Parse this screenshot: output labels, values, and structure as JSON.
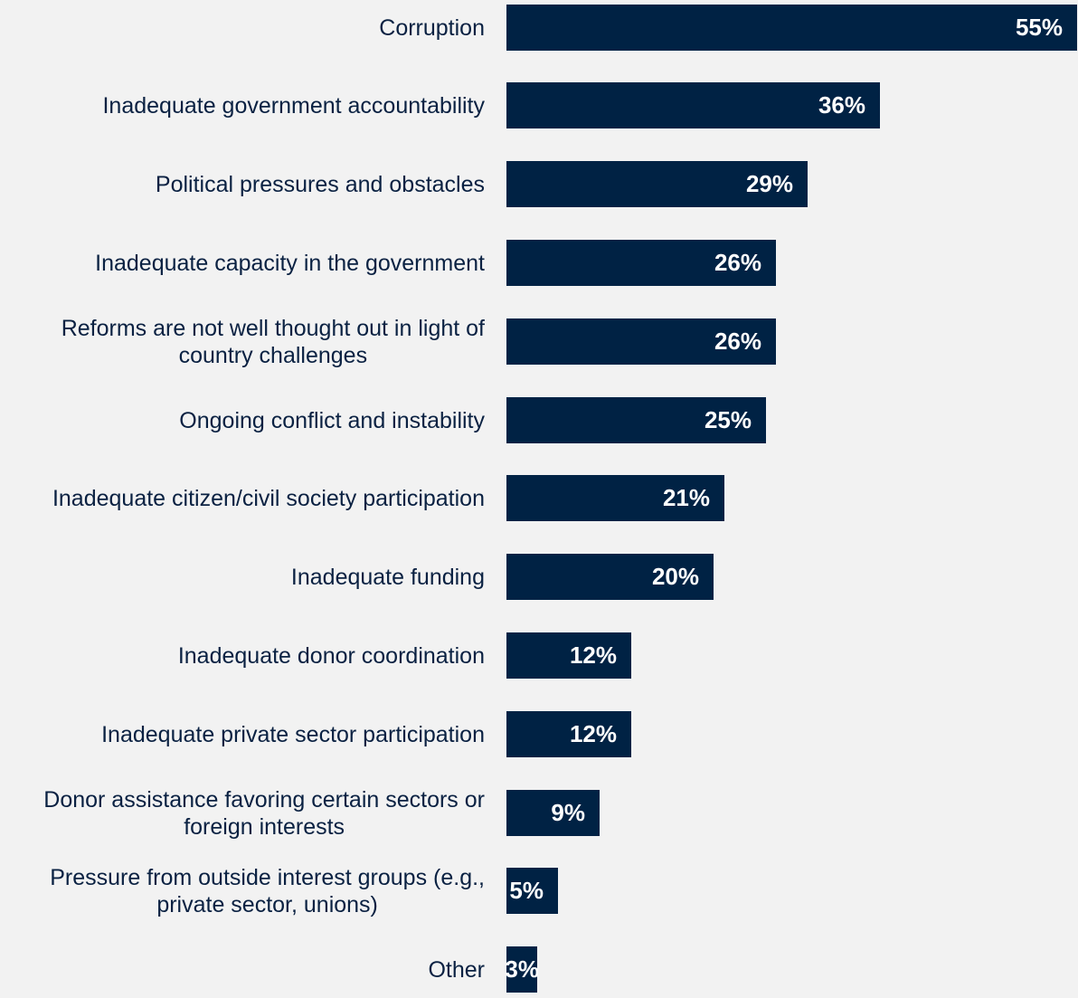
{
  "chart_data": {
    "type": "bar",
    "orientation": "horizontal",
    "categories": [
      "Corruption",
      "Inadequate government accountability",
      "Political pressures and obstacles",
      "Inadequate capacity in the government",
      "Reforms are not well thought out in light of country challenges",
      "Ongoing conflict and instability",
      "Inadequate citizen/civil society participation",
      "Inadequate funding",
      "Inadequate donor coordination",
      "Inadequate private sector participation",
      "Donor assistance favoring certain sectors or foreign interests",
      "Pressure from outside interest groups (e.g., private sector, unions)",
      "Other"
    ],
    "values": [
      55,
      36,
      29,
      26,
      26,
      25,
      21,
      20,
      12,
      12,
      9,
      5,
      3
    ],
    "value_labels": [
      "55%",
      "36%",
      "29%",
      "26%",
      "26%",
      "25%",
      "21%",
      "20%",
      "12%",
      "12%",
      "9%",
      "5%",
      "3%"
    ],
    "xlim": [
      0,
      55
    ],
    "title": "",
    "xlabel": "",
    "ylabel": "",
    "grid": false,
    "bar_color": "#002244",
    "value_label_color": "#ffffff",
    "category_label_color": "#0a2142",
    "background_color": "#f2f2f2"
  }
}
